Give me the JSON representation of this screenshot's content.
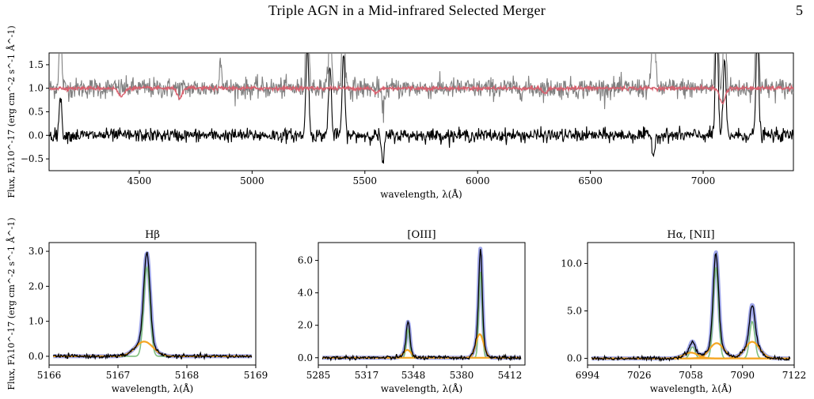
{
  "header": {
    "running_title": "Triple AGN in a Mid-infrared Selected Merger",
    "page_number": "5"
  },
  "chart_data": [
    {
      "type": "line",
      "xlabel": "wavelength, λ(Å)",
      "ylabel": "Flux, Fλ10^-17 (erg cm^-2 s^-1 Å^-1)",
      "xlim": [
        4100,
        7400
      ],
      "ylim": [
        -0.75,
        1.75
      ],
      "xticks": [
        4500,
        5000,
        5500,
        6000,
        6500,
        7000
      ],
      "yticks": [
        -0.5,
        0.0,
        0.5,
        1.0,
        1.5
      ],
      "xtick_labels": [
        "4500",
        "5000",
        "5500",
        "6000",
        "6500",
        "7000"
      ],
      "ytick_labels": [
        "−0.5",
        "0.0",
        "0.5",
        "1.0",
        "1.5"
      ],
      "grid": false,
      "colors": {
        "spectrum": "#808080",
        "model": "#d9606e",
        "residual": "#000000"
      },
      "series": [
        {
          "role": "spectrum",
          "baseline": 1.0,
          "noise": 0.11,
          "features": [
            [
              4150,
              1.2
            ],
            [
              4860,
              0.6
            ],
            [
              5245,
              2.2
            ],
            [
              5345,
              1.6
            ],
            [
              5405,
              1.8
            ],
            [
              5580,
              -0.5
            ],
            [
              6780,
              2.4
            ],
            [
              7060,
              2.6
            ],
            [
              7095,
              1.6
            ],
            [
              7240,
              2.4
            ]
          ]
        },
        {
          "role": "model",
          "baseline": 1.0,
          "noise": 0.02,
          "features": [
            [
              4420,
              -0.18
            ],
            [
              4680,
              -0.2
            ],
            [
              5550,
              -0.1
            ],
            [
              6300,
              -0.1
            ],
            [
              7085,
              -0.32
            ]
          ]
        },
        {
          "role": "residual",
          "baseline": 0.0,
          "noise": 0.07,
          "features": [
            [
              4150,
              0.8
            ],
            [
              5245,
              2.0
            ],
            [
              5345,
              1.5
            ],
            [
              5405,
              1.7
            ],
            [
              5580,
              -0.6
            ],
            [
              6780,
              -0.4
            ],
            [
              7060,
              2.5
            ],
            [
              7095,
              1.6
            ],
            [
              7240,
              2.3
            ]
          ]
        }
      ]
    },
    {
      "type": "line",
      "title": "Hβ",
      "xlabel": "wavelength, λ(Å)",
      "ylabel": "Flux, Fλ10^-17 (erg cm^-2 s^-1 Å^-1)",
      "xlim": [
        5166,
        5169
      ],
      "ylim": [
        -0.25,
        3.25
      ],
      "xticks": [
        5166,
        5167,
        5168,
        5169
      ],
      "yticks": [
        0.0,
        1.0,
        2.0,
        3.0
      ],
      "xtick_labels": [
        "5166",
        "5167",
        "5168",
        "5169"
      ],
      "ytick_labels": [
        "0.0",
        "1.0",
        "2.0",
        "3.0"
      ],
      "components": [
        {
          "role": "narrow",
          "center": 5167.42,
          "sigma": 0.045,
          "amp": 2.55,
          "color": "#7fbf7f"
        },
        {
          "role": "broad",
          "center": 5167.38,
          "sigma": 0.13,
          "amp": 0.42,
          "color": "#f5a623"
        }
      ],
      "total_color": "#8e96e6",
      "data_color": "#000000"
    },
    {
      "type": "line",
      "title": "[OIII]",
      "xlabel": "wavelength, λ(Å)",
      "ylabel": "",
      "xlim": [
        5285,
        5422
      ],
      "ylim": [
        -0.45,
        7.1
      ],
      "xticks": [
        5285,
        5317,
        5348,
        5380,
        5412
      ],
      "yticks": [
        0.0,
        2.0,
        4.0,
        6.0
      ],
      "xtick_labels": [
        "5285",
        "5317",
        "5348",
        "5380",
        "5412"
      ],
      "ytick_labels": [
        "0.0",
        "2.0",
        "4.0",
        "6.0"
      ],
      "components": [
        {
          "role": "narrow",
          "center": 5344.5,
          "sigma": 1.1,
          "amp": 1.75,
          "color": "#7fbf7f"
        },
        {
          "role": "narrow",
          "center": 5392.5,
          "sigma": 1.1,
          "amp": 5.3,
          "color": "#7fbf7f"
        },
        {
          "role": "broad",
          "center": 5344,
          "sigma": 2.6,
          "amp": 0.48,
          "color": "#f5a623"
        },
        {
          "role": "broad",
          "center": 5392,
          "sigma": 2.6,
          "amp": 1.45,
          "color": "#f5a623"
        }
      ],
      "total_color": "#8e96e6",
      "data_color": "#000000"
    },
    {
      "type": "line",
      "title": "Hα, [NII]",
      "xlabel": "wavelength, λ(Å)",
      "ylabel": "",
      "xlim": [
        6994,
        7122
      ],
      "ylim": [
        -0.7,
        12.2
      ],
      "xticks": [
        6994,
        7026,
        7058,
        7090,
        7122
      ],
      "yticks": [
        0.0,
        5.0,
        10.0
      ],
      "xtick_labels": [
        "6994",
        "7026",
        "7058",
        "7090",
        "7122"
      ],
      "ytick_labels": [
        "0.0",
        "5.0",
        "10.0"
      ],
      "components": [
        {
          "role": "narrow",
          "center": 7059,
          "sigma": 1.6,
          "amp": 1.2,
          "color": "#7fbf7f"
        },
        {
          "role": "narrow",
          "center": 7073.5,
          "sigma": 1.6,
          "amp": 9.6,
          "color": "#7fbf7f"
        },
        {
          "role": "narrow",
          "center": 7096,
          "sigma": 1.6,
          "amp": 3.9,
          "color": "#7fbf7f"
        },
        {
          "role": "broad",
          "center": 7058,
          "sigma": 4.5,
          "amp": 0.6,
          "color": "#f5a623"
        },
        {
          "role": "broad",
          "center": 7074,
          "sigma": 4.5,
          "amp": 1.6,
          "color": "#f5a623"
        },
        {
          "role": "broad",
          "center": 7096,
          "sigma": 4.5,
          "amp": 1.75,
          "color": "#f5a623"
        }
      ],
      "total_color": "#8e96e6",
      "data_color": "#000000"
    }
  ]
}
